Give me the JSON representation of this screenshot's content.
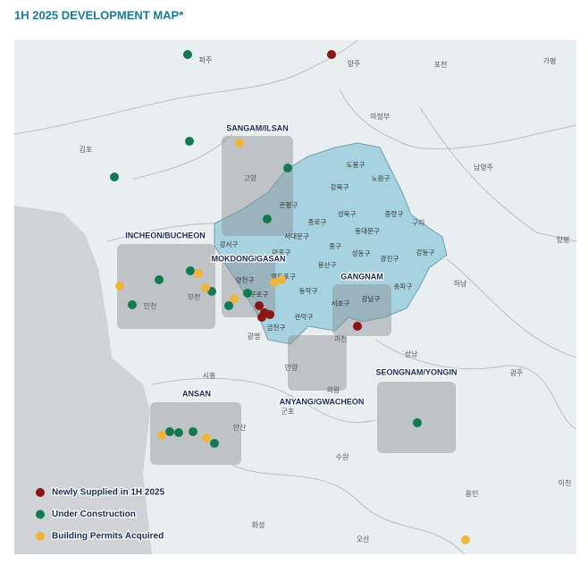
{
  "header": {
    "title": "1H 2025 DEVELOPMENT MAP*"
  },
  "places": [
    "파주",
    "양주",
    "포천",
    "가평",
    "의정부",
    "남양주",
    "김포",
    "고양",
    "구리",
    "양평",
    "하남",
    "광주",
    "성남",
    "이천",
    "용인",
    "수원",
    "화성",
    "오산",
    "시흥",
    "안산",
    "광명",
    "의왕",
    "군포",
    "안양",
    "과천",
    "인천",
    "부천"
  ],
  "districts": [
    "도봉구",
    "노원구",
    "강북구",
    "은평구",
    "성북구",
    "중랑구",
    "종로구",
    "동대문구",
    "서대문구",
    "중구",
    "강서구",
    "마포구",
    "용산구",
    "성동구",
    "광진구",
    "강동구",
    "양천구",
    "영등포구",
    "동작구",
    "송파구",
    "구로구",
    "강남구",
    "서초구",
    "관악구",
    "금천구"
  ],
  "zones": [
    "SANGAM/ILSAN",
    "INCHEON/BUCHEON",
    "MOKDONG/GASAN",
    "GANGNAM",
    "ANYANG/GWACHEON",
    "SEONGNAM/YONGIN",
    "ANSAN"
  ],
  "legend": [
    "Newly Supplied in 1H 2025",
    "Under Construction",
    "Building Permits Acquired"
  ]
}
